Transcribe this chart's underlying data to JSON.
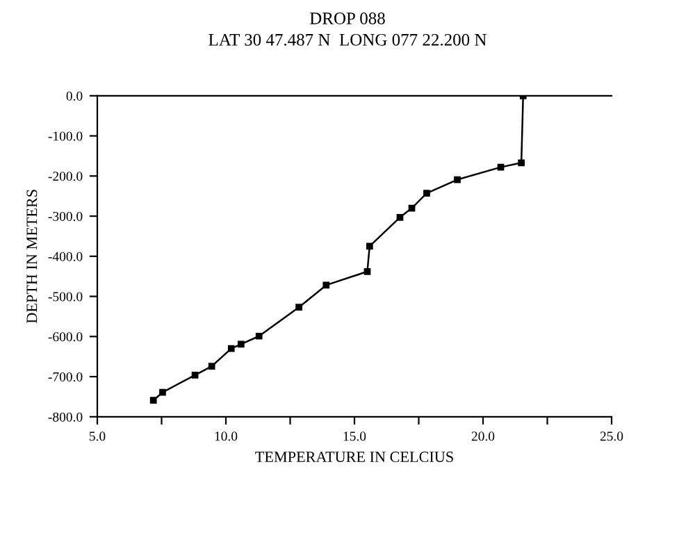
{
  "chart_data": {
    "type": "line",
    "title": "DROP 088",
    "subtitle": "LAT 30 47.487 N  LONG 077 22.200 N",
    "xlabel": "TEMPERATURE IN CELCIUS",
    "ylabel": "DEPTH IN METERS",
    "series": [
      {
        "color": "#000000",
        "x": [
          21.56,
          21.49,
          20.69,
          19.0,
          17.81,
          17.23,
          16.77,
          15.59,
          15.5,
          13.9,
          12.84,
          11.29,
          10.59,
          10.21,
          9.45,
          8.8,
          7.54,
          7.18
        ],
        "values": [
          0,
          -167,
          -178,
          -209,
          -243,
          -280,
          -303,
          -375,
          -438,
          -472,
          -527,
          -599,
          -619,
          -630,
          -674,
          -696,
          -739,
          -759
        ]
      }
    ],
    "xlim": [
      5,
      25
    ],
    "ylim": [
      -800,
      0
    ],
    "xticks": [
      {
        "value": 5,
        "label": "5.0"
      },
      {
        "value": 7.5,
        "label": null
      },
      {
        "value": 10,
        "label": "10.0"
      },
      {
        "value": 12.5,
        "label": null
      },
      {
        "value": 15,
        "label": "15.0"
      },
      {
        "value": 17.5,
        "label": null
      },
      {
        "value": 20,
        "label": "20.0"
      },
      {
        "value": 22.5,
        "label": null
      },
      {
        "value": 25,
        "label": "25.0"
      }
    ],
    "yticks": [
      {
        "value": 0,
        "label": "0.0"
      },
      {
        "value": -100,
        "label": "-100.0"
      },
      {
        "value": -200,
        "label": "-200.0"
      },
      {
        "value": -300,
        "label": "-300.0"
      },
      {
        "value": -400,
        "label": "-400.0"
      },
      {
        "value": -500,
        "label": "-500.0"
      },
      {
        "value": -600,
        "label": "-600.0"
      },
      {
        "value": -700,
        "label": "-700.0"
      },
      {
        "value": -800,
        "label": "-800.0"
      }
    ],
    "marker": "square",
    "line_style": "solid",
    "grid": false,
    "legend": false
  }
}
